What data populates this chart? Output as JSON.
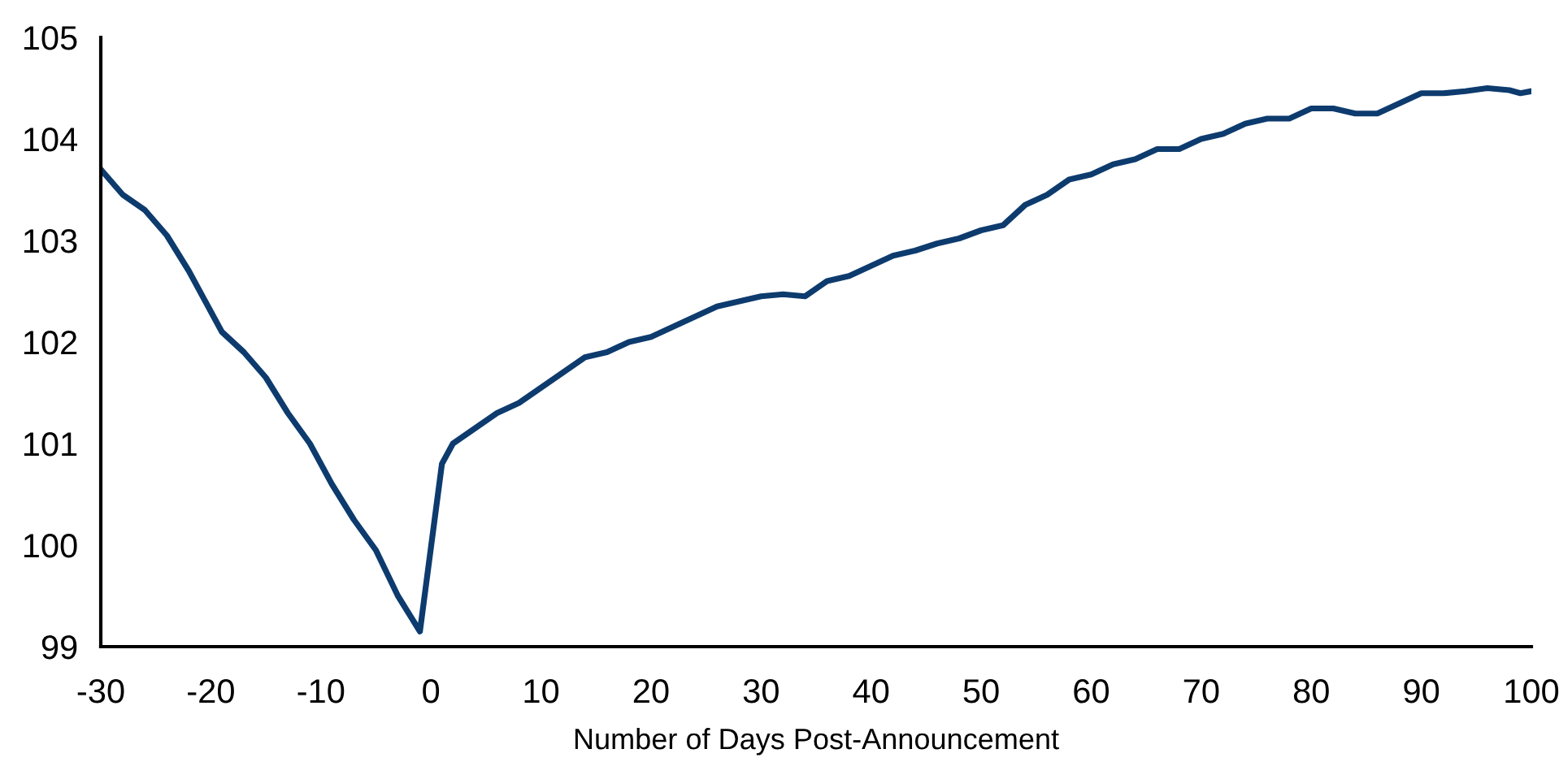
{
  "chart_data": {
    "type": "line",
    "xlabel": "Number of Days Post-Announcement",
    "x": [
      -30,
      -28,
      -26,
      -24,
      -22,
      -20,
      -19,
      -17,
      -15,
      -13,
      -11,
      -9,
      -7,
      -5,
      -3,
      -1,
      1,
      2,
      4,
      6,
      8,
      10,
      12,
      14,
      16,
      18,
      20,
      22,
      24,
      26,
      28,
      30,
      32,
      34,
      36,
      38,
      40,
      42,
      44,
      46,
      48,
      50,
      52,
      54,
      56,
      58,
      60,
      62,
      64,
      66,
      68,
      70,
      72,
      74,
      76,
      78,
      80,
      82,
      84,
      86,
      88,
      90,
      92,
      94,
      96,
      98,
      99,
      100
    ],
    "series": [
      {
        "color": "#0d3b6e",
        "values": [
          103.7,
          103.45,
          103.3,
          103.05,
          102.7,
          102.3,
          102.1,
          101.9,
          101.65,
          101.3,
          101.0,
          100.6,
          100.25,
          99.95,
          99.5,
          99.15,
          100.8,
          101.0,
          101.15,
          101.3,
          101.4,
          101.55,
          101.7,
          101.85,
          101.9,
          102.0,
          102.05,
          102.15,
          102.25,
          102.35,
          102.4,
          102.45,
          102.47,
          102.45,
          102.6,
          102.65,
          102.75,
          102.85,
          102.9,
          102.97,
          103.02,
          103.1,
          103.15,
          103.35,
          103.45,
          103.6,
          103.65,
          103.75,
          103.8,
          103.9,
          103.9,
          104.0,
          104.05,
          104.15,
          104.2,
          104.2,
          104.3,
          104.3,
          104.25,
          104.25,
          104.35,
          104.45,
          104.45,
          104.47,
          104.5,
          104.48,
          104.45,
          104.47
        ]
      }
    ],
    "xlim": [
      -30,
      100
    ],
    "xticks": [
      -30,
      -20,
      -10,
      0,
      10,
      20,
      30,
      40,
      50,
      60,
      70,
      80,
      90,
      100
    ],
    "ylim": [
      99,
      105
    ],
    "yticks": [
      99,
      100,
      101,
      102,
      103,
      104,
      105
    ],
    "grid": false,
    "legend": false,
    "marker": "none",
    "line_style": "solid"
  }
}
